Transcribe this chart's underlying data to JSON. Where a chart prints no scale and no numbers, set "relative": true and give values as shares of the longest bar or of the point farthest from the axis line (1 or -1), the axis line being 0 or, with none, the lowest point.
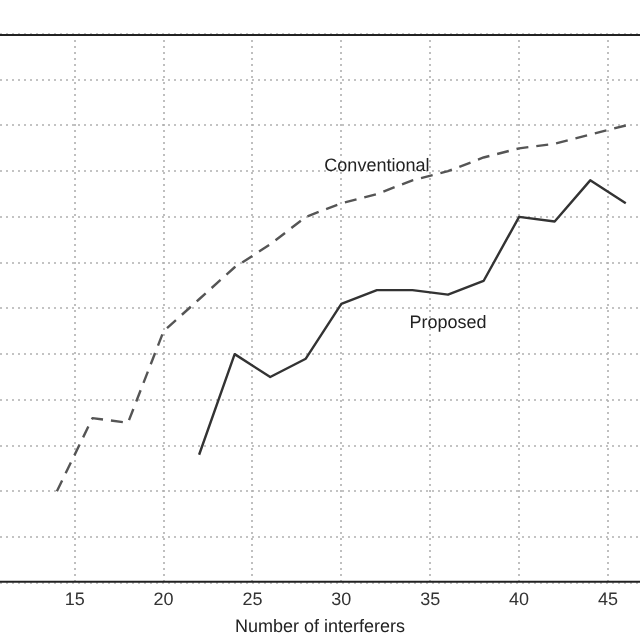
{
  "chart_data": {
    "type": "line",
    "xlabel": "Number of interferers",
    "relative": true,
    "xlim": [
      10.8,
      46.8
    ],
    "xticks": [
      15,
      20,
      25,
      30,
      35,
      40,
      45
    ],
    "grid": true,
    "legend": false,
    "marker": "none",
    "series": [
      {
        "name": "Conventional",
        "color": "#555555",
        "line_style": "dashed",
        "x": [
          14,
          16,
          18,
          20,
          22,
          24,
          26,
          28,
          30,
          32,
          34,
          36,
          38,
          40,
          42,
          44,
          46
        ],
        "values": [
          0.2,
          0.36,
          0.35,
          0.55,
          0.62,
          0.69,
          0.74,
          0.8,
          0.83,
          0.85,
          0.88,
          0.9,
          0.93,
          0.95,
          0.96,
          0.98,
          1
        ]
      },
      {
        "name": "Proposed",
        "color": "#333333",
        "line_style": "solid",
        "x": [
          22,
          24,
          26,
          28,
          30,
          32,
          34,
          36,
          38,
          40,
          42,
          44,
          46
        ],
        "values": [
          0.28,
          0.5,
          0.45,
          0.49,
          0.61,
          0.64,
          0.64,
          0.63,
          0.66,
          0.8,
          0.79,
          0.88,
          0.83
        ]
      }
    ]
  }
}
